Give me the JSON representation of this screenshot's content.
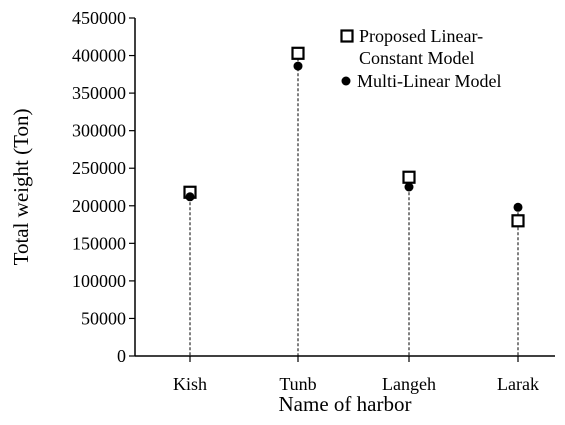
{
  "chart_data": {
    "type": "scatter",
    "categories": [
      "Kish",
      "Tunb",
      "Langeh",
      "Larak"
    ],
    "series": [
      {
        "name": "Proposed Linear-Constant Model",
        "values": [
          218000,
          403000,
          238000,
          180000
        ],
        "marker": "hollow-square",
        "color": "#000000"
      },
      {
        "name": "Multi-Linear Model",
        "values": [
          212000,
          386000,
          225000,
          198000
        ],
        "marker": "filled-circle",
        "color": "#000000"
      }
    ],
    "drop_lines": "dashed",
    "xlabel": "Name of harbor",
    "ylabel": "Total weight (Ton)",
    "ylim": [
      0,
      450000
    ],
    "yticks": [
      0,
      50000,
      100000,
      150000,
      200000,
      250000,
      300000,
      350000,
      400000,
      450000
    ],
    "grid": false,
    "legend_position": "top-right",
    "legend_lines": [
      [
        "Proposed Linear-",
        "Constant Model"
      ],
      [
        "Multi-Linear Model"
      ]
    ]
  }
}
